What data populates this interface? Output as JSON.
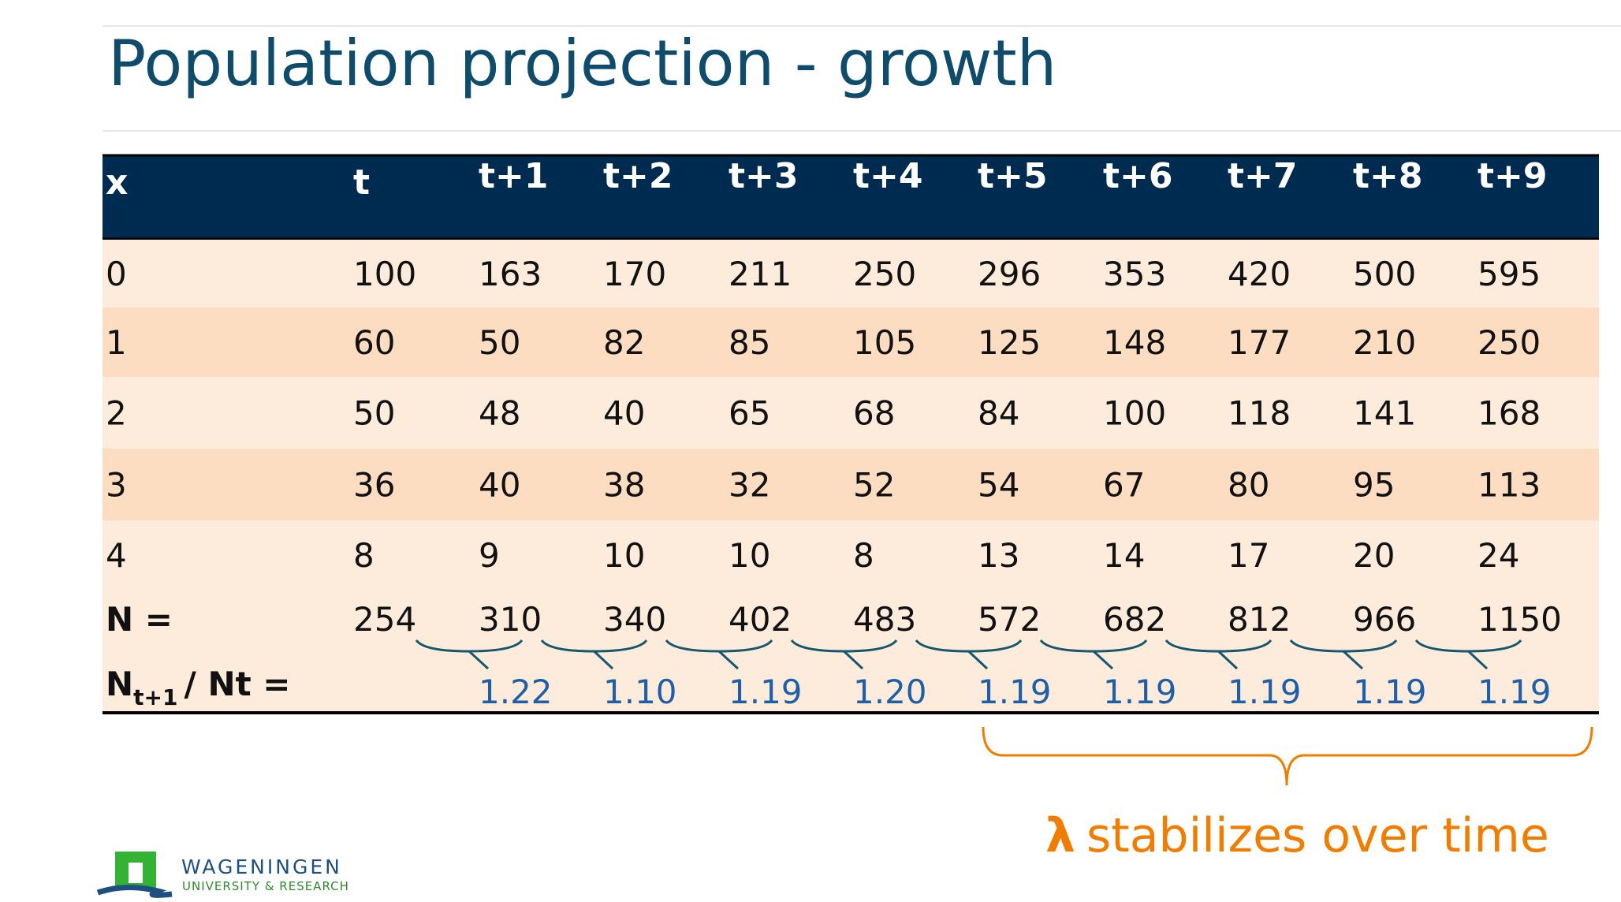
{
  "title": "Population projection - growth",
  "table": {
    "header": [
      "x",
      "t",
      "t+1",
      "t+2",
      "t+3",
      "t+4",
      "t+5",
      "t+6",
      "t+7",
      "t+8",
      "t+9"
    ],
    "rows": [
      [
        "0",
        "100",
        "163",
        "170",
        "211",
        "250",
        "296",
        "353",
        "420",
        "500",
        "595"
      ],
      [
        "1",
        "60",
        "50",
        "82",
        "85",
        "105",
        "125",
        "148",
        "177",
        "210",
        "250"
      ],
      [
        "2",
        "50",
        "48",
        "40",
        "65",
        "68",
        "84",
        "100",
        "118",
        "141",
        "168"
      ],
      [
        "3",
        "36",
        "40",
        "38",
        "32",
        "52",
        "54",
        "67",
        "80",
        "95",
        "113"
      ],
      [
        "4",
        "8",
        "9",
        "10",
        "10",
        "8",
        "13",
        "14",
        "17",
        "20",
        "24"
      ]
    ],
    "n_row": {
      "label": "N =",
      "values": [
        "254",
        "310",
        "340",
        "402",
        "483",
        "572",
        "682",
        "812",
        "966",
        "1150"
      ]
    },
    "ratio_row": {
      "label": [
        "N",
        "t+1",
        "/ Nt ="
      ],
      "values": [
        "1.22",
        "1.10",
        "1.19",
        "1.20",
        "1.19",
        "1.19",
        "1.19",
        "1.19",
        "1.19"
      ]
    }
  },
  "annotation": {
    "symbol": "λ",
    "text": "stabilizes over time"
  },
  "logo": {
    "name": "WAGENINGEN",
    "subtitle": "UNIVERSITY & RESEARCH"
  }
}
